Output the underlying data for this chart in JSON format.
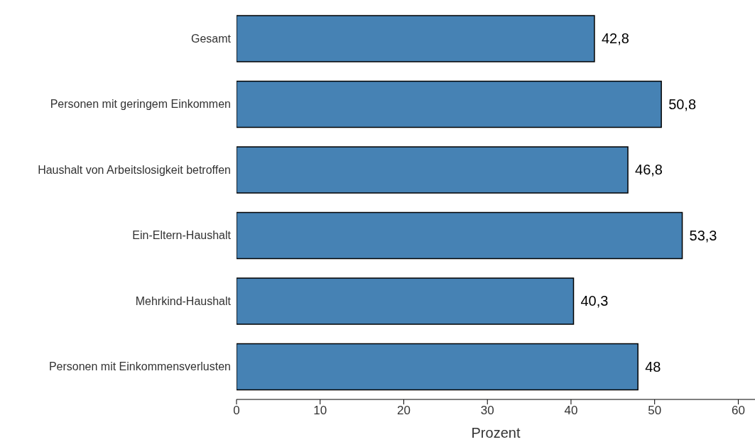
{
  "chart_data": {
    "type": "bar",
    "orientation": "horizontal",
    "xlabel": "Prozent",
    "categories": [
      "Gesamt",
      "Personen mit geringem Einkommen",
      "Haushalt von Arbeitslosigkeit betroffen",
      "Ein-Eltern-Haushalt",
      "Mehrkind-Haushalt",
      "Personen mit Einkommensverlusten"
    ],
    "values": [
      42.8,
      50.8,
      46.8,
      53.3,
      40.3,
      48
    ],
    "value_labels": [
      "42,8",
      "50,8",
      "46,8",
      "53,3",
      "40,3",
      "48"
    ],
    "color": "#4682b4",
    "xlim": [
      0,
      62
    ],
    "xticks": [
      0,
      10,
      20,
      30,
      40,
      50,
      60
    ],
    "grid": false
  }
}
